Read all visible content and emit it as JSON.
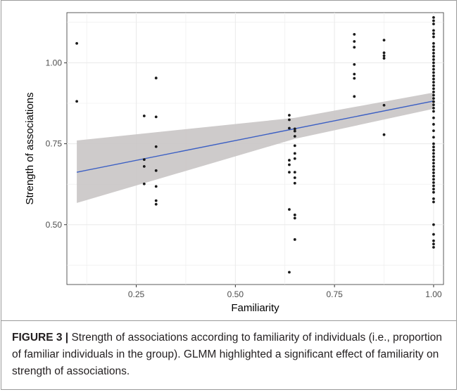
{
  "caption": {
    "label": "FIGURE 3 |",
    "text": " Strength of associations according to familiarity of individuals (i.e., proportion of familiar individuals in the group). GLMM highlighted a significant effect of familiarity on strength of associations."
  },
  "colors": {
    "points": "#1a1a1a",
    "fit_line": "#3b5fc4",
    "confidence_band": "#c9c5c5",
    "grid": "#ebebeb"
  },
  "chart_data": {
    "type": "scatter",
    "title": "",
    "xlabel": "Familiarity",
    "ylabel": "Strength of associations",
    "xlim": [
      0.075,
      1.025
    ],
    "ylim": [
      0.315,
      1.155
    ],
    "x_ticks": [
      0.25,
      0.5,
      0.75,
      1.0
    ],
    "x_tick_labels": [
      "0.25",
      "0.50",
      "0.75",
      "1.00"
    ],
    "y_ticks": [
      0.5,
      0.75,
      1.0
    ],
    "y_tick_labels": [
      "0.50",
      "0.75",
      "1.00"
    ],
    "grid": true,
    "legend": "none",
    "points": [
      {
        "x": 0.1,
        "y": 1.06
      },
      {
        "x": 0.1,
        "y": 0.881
      },
      {
        "x": 0.27,
        "y": 0.836
      },
      {
        "x": 0.27,
        "y": 0.701
      },
      {
        "x": 0.27,
        "y": 0.68
      },
      {
        "x": 0.27,
        "y": 0.626
      },
      {
        "x": 0.3,
        "y": 0.953
      },
      {
        "x": 0.3,
        "y": 0.833
      },
      {
        "x": 0.3,
        "y": 0.741
      },
      {
        "x": 0.3,
        "y": 0.667
      },
      {
        "x": 0.3,
        "y": 0.618
      },
      {
        "x": 0.3,
        "y": 0.574
      },
      {
        "x": 0.3,
        "y": 0.563
      },
      {
        "x": 0.636,
        "y": 0.838
      },
      {
        "x": 0.636,
        "y": 0.824
      },
      {
        "x": 0.636,
        "y": 0.798
      },
      {
        "x": 0.636,
        "y": 0.699
      },
      {
        "x": 0.636,
        "y": 0.685
      },
      {
        "x": 0.636,
        "y": 0.662
      },
      {
        "x": 0.636,
        "y": 0.547
      },
      {
        "x": 0.636,
        "y": 0.353
      },
      {
        "x": 0.65,
        "y": 0.796
      },
      {
        "x": 0.65,
        "y": 0.789
      },
      {
        "x": 0.65,
        "y": 0.773
      },
      {
        "x": 0.65,
        "y": 0.744
      },
      {
        "x": 0.65,
        "y": 0.72
      },
      {
        "x": 0.65,
        "y": 0.704
      },
      {
        "x": 0.65,
        "y": 0.662
      },
      {
        "x": 0.65,
        "y": 0.645
      },
      {
        "x": 0.65,
        "y": 0.628
      },
      {
        "x": 0.65,
        "y": 0.53
      },
      {
        "x": 0.65,
        "y": 0.52
      },
      {
        "x": 0.65,
        "y": 0.454
      },
      {
        "x": 0.8,
        "y": 1.088
      },
      {
        "x": 0.8,
        "y": 1.066
      },
      {
        "x": 0.8,
        "y": 1.048
      },
      {
        "x": 0.8,
        "y": 0.995
      },
      {
        "x": 0.8,
        "y": 0.965
      },
      {
        "x": 0.8,
        "y": 0.952
      },
      {
        "x": 0.8,
        "y": 0.896
      },
      {
        "x": 0.875,
        "y": 1.07
      },
      {
        "x": 0.875,
        "y": 1.031
      },
      {
        "x": 0.875,
        "y": 1.022
      },
      {
        "x": 0.875,
        "y": 1.014
      },
      {
        "x": 0.875,
        "y": 0.869
      },
      {
        "x": 0.875,
        "y": 0.778
      },
      {
        "x": 1.0,
        "y": 1.14
      },
      {
        "x": 1.0,
        "y": 1.13
      },
      {
        "x": 1.0,
        "y": 1.12
      },
      {
        "x": 1.0,
        "y": 1.1
      },
      {
        "x": 1.0,
        "y": 1.09
      },
      {
        "x": 1.0,
        "y": 1.08
      },
      {
        "x": 1.0,
        "y": 1.06
      },
      {
        "x": 1.0,
        "y": 1.05
      },
      {
        "x": 1.0,
        "y": 1.04
      },
      {
        "x": 1.0,
        "y": 1.03
      },
      {
        "x": 1.0,
        "y": 1.02
      },
      {
        "x": 1.0,
        "y": 1.01
      },
      {
        "x": 1.0,
        "y": 1.0
      },
      {
        "x": 1.0,
        "y": 0.99
      },
      {
        "x": 1.0,
        "y": 0.98
      },
      {
        "x": 1.0,
        "y": 0.97
      },
      {
        "x": 1.0,
        "y": 0.96
      },
      {
        "x": 1.0,
        "y": 0.95
      },
      {
        "x": 1.0,
        "y": 0.94
      },
      {
        "x": 1.0,
        "y": 0.93
      },
      {
        "x": 1.0,
        "y": 0.92
      },
      {
        "x": 1.0,
        "y": 0.91
      },
      {
        "x": 1.0,
        "y": 0.9
      },
      {
        "x": 1.0,
        "y": 0.89
      },
      {
        "x": 1.0,
        "y": 0.88
      },
      {
        "x": 1.0,
        "y": 0.87
      },
      {
        "x": 1.0,
        "y": 0.86
      },
      {
        "x": 1.0,
        "y": 0.85
      },
      {
        "x": 1.0,
        "y": 0.83
      },
      {
        "x": 1.0,
        "y": 0.81
      },
      {
        "x": 1.0,
        "y": 0.79
      },
      {
        "x": 1.0,
        "y": 0.77
      },
      {
        "x": 1.0,
        "y": 0.75
      },
      {
        "x": 1.0,
        "y": 0.74
      },
      {
        "x": 1.0,
        "y": 0.73
      },
      {
        "x": 1.0,
        "y": 0.72
      },
      {
        "x": 1.0,
        "y": 0.71
      },
      {
        "x": 1.0,
        "y": 0.7
      },
      {
        "x": 1.0,
        "y": 0.69
      },
      {
        "x": 1.0,
        "y": 0.68
      },
      {
        "x": 1.0,
        "y": 0.67
      },
      {
        "x": 1.0,
        "y": 0.66
      },
      {
        "x": 1.0,
        "y": 0.65
      },
      {
        "x": 1.0,
        "y": 0.64
      },
      {
        "x": 1.0,
        "y": 0.63
      },
      {
        "x": 1.0,
        "y": 0.62
      },
      {
        "x": 1.0,
        "y": 0.61
      },
      {
        "x": 1.0,
        "y": 0.6
      },
      {
        "x": 1.0,
        "y": 0.58
      },
      {
        "x": 1.0,
        "y": 0.57
      },
      {
        "x": 1.0,
        "y": 0.5
      },
      {
        "x": 1.0,
        "y": 0.47
      },
      {
        "x": 1.0,
        "y": 0.45
      },
      {
        "x": 1.0,
        "y": 0.44
      },
      {
        "x": 1.0,
        "y": 0.43
      }
    ],
    "fit": {
      "x": [
        0.1,
        1.0
      ],
      "y": [
        0.662,
        0.882
      ],
      "ci_lower": [
        0.567,
        0.858
      ],
      "ci_upper": [
        0.76,
        0.908
      ],
      "ci_at_0_65": [
        0.765,
        0.83
      ]
    }
  }
}
